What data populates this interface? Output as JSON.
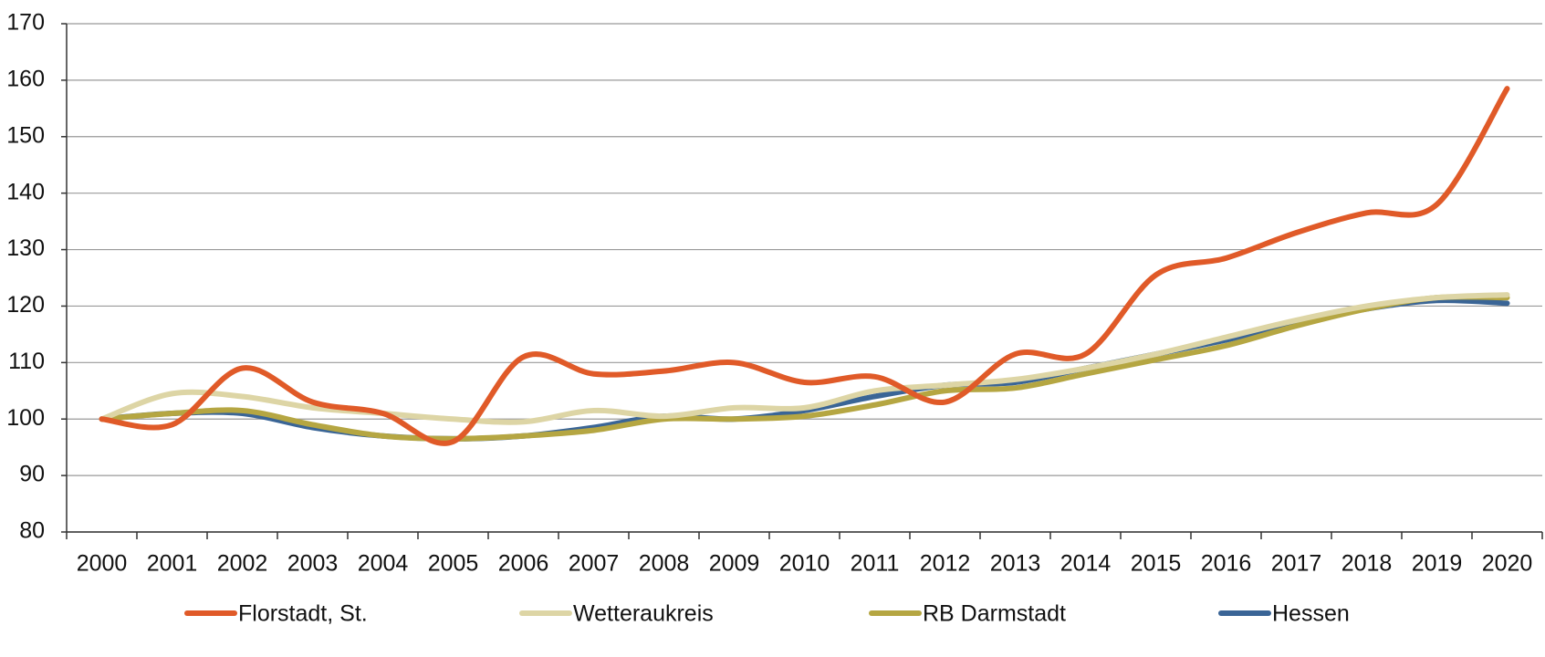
{
  "chart_data": {
    "type": "line",
    "categories": [
      "2000",
      "2001",
      "2002",
      "2003",
      "2004",
      "2005",
      "2006",
      "2007",
      "2008",
      "2009",
      "2010",
      "2011",
      "2012",
      "2013",
      "2014",
      "2015",
      "2016",
      "2017",
      "2018",
      "2019",
      "2020"
    ],
    "series": [
      {
        "name": "Florstadt, St.",
        "color": "#e05a28",
        "values": [
          100,
          99,
          109,
          103,
          101,
          96,
          111,
          108,
          108.5,
          110,
          106.5,
          107.5,
          103,
          111.5,
          111.5,
          125.5,
          128.5,
          133,
          136.5,
          138,
          158.5
        ]
      },
      {
        "name": "Wetteraukreis",
        "color": "#ddd5a5",
        "values": [
          100,
          104.5,
          104,
          102,
          101,
          100,
          99.5,
          101.5,
          100.5,
          102,
          102,
          105,
          106,
          107,
          109,
          111.5,
          114.5,
          117.5,
          120,
          121.5,
          122
        ]
      },
      {
        "name": "RB Darmstadt",
        "color": "#b5a642",
        "values": [
          100,
          101,
          101.5,
          99,
          97,
          96.5,
          97,
          98,
          100,
          100,
          100.5,
          102.5,
          105,
          105.5,
          108,
          110.5,
          113,
          116.5,
          119.5,
          121.5,
          121.5
        ]
      },
      {
        "name": "Hessen",
        "color": "#3a6596",
        "values": [
          100,
          101,
          101,
          98.5,
          97,
          96.5,
          97,
          98.5,
          100.5,
          100,
          101.5,
          104,
          106,
          106.5,
          109,
          111.5,
          114,
          117,
          119.5,
          121,
          120.5
        ]
      }
    ],
    "ylim": [
      80,
      170
    ],
    "yticks": [
      80,
      90,
      100,
      110,
      120,
      130,
      140,
      150,
      160,
      170
    ],
    "grid": true,
    "legend": "bottom"
  }
}
